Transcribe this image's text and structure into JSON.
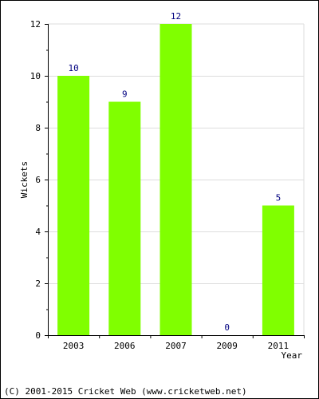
{
  "chart_data": {
    "type": "bar",
    "categories": [
      "2003",
      "2006",
      "2007",
      "2009",
      "2011"
    ],
    "values": [
      10,
      9,
      12,
      0,
      5
    ],
    "data_labels": [
      "10",
      "9",
      "12",
      "0",
      "5"
    ],
    "title": "",
    "xlabel": "Year",
    "ylabel": "Wickets",
    "ylim": [
      0,
      12
    ],
    "yticks": [
      0,
      2,
      4,
      6,
      8,
      10,
      12
    ],
    "grid": true,
    "bar_color": "#80ff00",
    "label_color": "#000080"
  },
  "footer": {
    "copyright": "(C) 2001-2015 Cricket Web (www.cricketweb.net)"
  }
}
